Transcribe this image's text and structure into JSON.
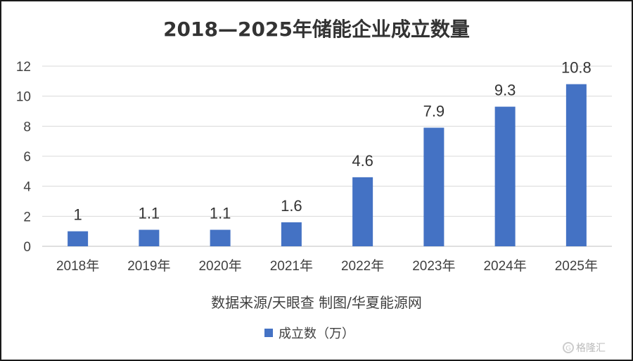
{
  "chart_data": {
    "type": "bar",
    "title": "2018—2025年储能企业成立数量",
    "categories": [
      "2018年",
      "2019年",
      "2020年",
      "2021年",
      "2022年",
      "2023年",
      "2024年",
      "2025年"
    ],
    "series": [
      {
        "name": "成立数（万）",
        "values": [
          1,
          1.1,
          1.1,
          1.6,
          4.6,
          7.9,
          9.3,
          10.8
        ]
      }
    ],
    "data_labels": [
      "1",
      "1.1",
      "1.1",
      "1.6",
      "4.6",
      "7.9",
      "9.3",
      "10.8"
    ],
    "ylim": [
      0,
      12
    ],
    "yticks": [
      0,
      2,
      4,
      6,
      8,
      10,
      12
    ],
    "grid": true,
    "legend_position": "bottom",
    "bar_color": "#4472c4"
  },
  "source_note": "数据来源/天眼查  制图/华夏能源网",
  "watermark": {
    "icon": "watermark-logo-icon",
    "text": "格隆汇"
  }
}
